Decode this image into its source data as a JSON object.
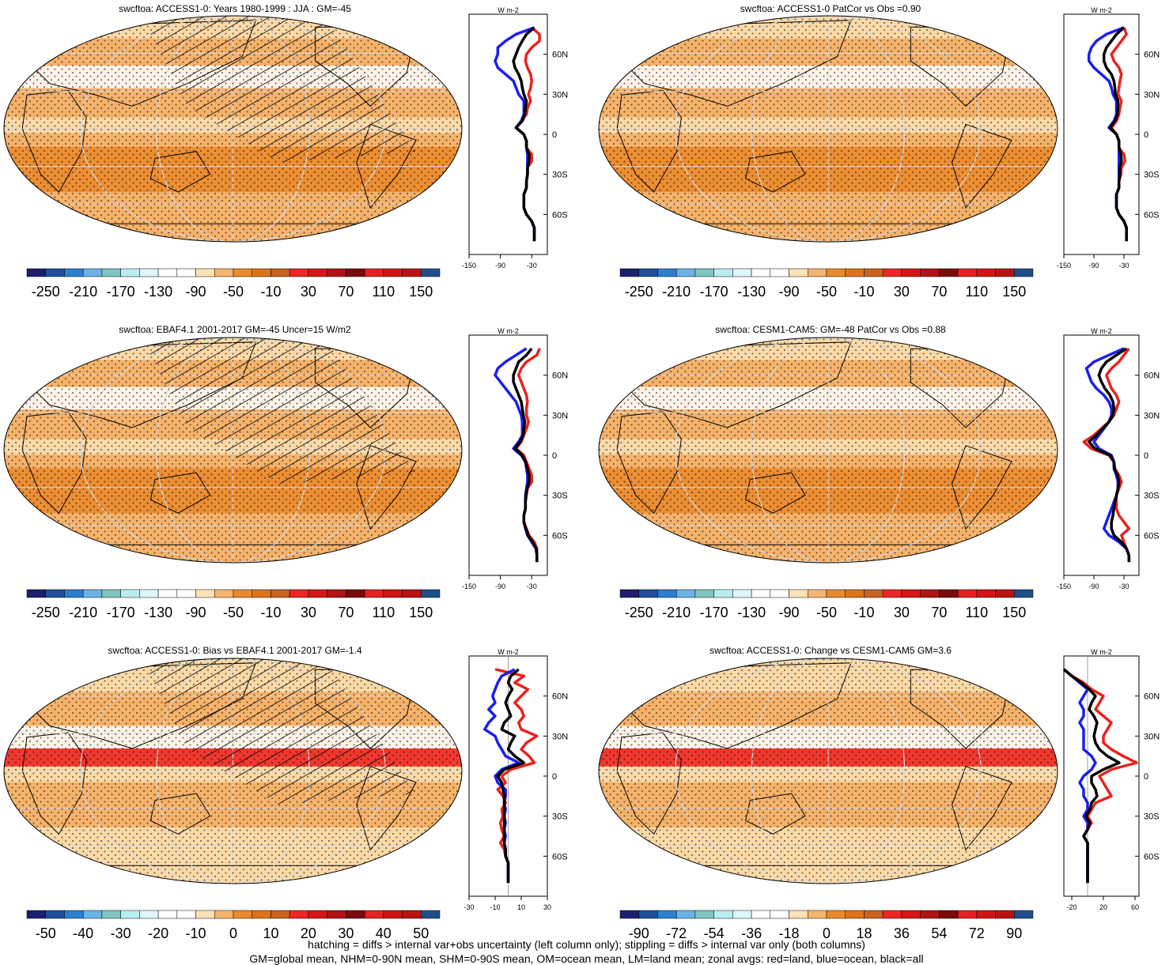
{
  "colors": {
    "ocean_base": "#f0a55c",
    "land_outline": "#000000",
    "grid_line": "#d8d8d8",
    "land_line": "#e8231f",
    "ocean_line": "#1d1df2",
    "all_line": "#000000"
  },
  "panels": [
    {
      "title": "swcftoa: ACCESS1-0: Years 1980-1999 : JJA : GM=-45",
      "hatched": true,
      "colorbar": {
        "ticks": [
          "-250",
          "-210",
          "-170",
          "-130",
          "-90",
          "-50",
          "-10",
          "30",
          "70",
          "110",
          "150"
        ],
        "colors": [
          "#1b1f6e",
          "#1f4f9c",
          "#2a7fcf",
          "#6bb3e6",
          "#7fc6c0",
          "#b8eef2",
          "#ddf7fb",
          "#ffffff",
          "#ffffff",
          "#fde2b4",
          "#f6b46d",
          "#eb8a2c",
          "#dd741a",
          "#c8621f",
          "#ee2626",
          "#d61616",
          "#b01313",
          "#7a0b0b",
          "#e52020",
          "#d01414",
          "#b81313",
          "#1e4f8a"
        ]
      },
      "zonal": {
        "label": "W m-2",
        "xticks": [
          "-150",
          "-90",
          "-30"
        ],
        "xlim": [
          -150,
          0
        ],
        "yticks": [
          "60N",
          "30N",
          "0",
          "30S",
          "60S"
        ],
        "lat": [
          80,
          75,
          70,
          65,
          60,
          55,
          50,
          45,
          40,
          35,
          30,
          25,
          20,
          15,
          10,
          5,
          0,
          -5,
          -10,
          -15,
          -20,
          -25,
          -30,
          -35,
          -40,
          -45,
          -50,
          -55,
          -60,
          -65,
          -70,
          -75,
          -80
        ],
        "land": [
          -30,
          -15,
          -15,
          -30,
          -40,
          -42,
          -38,
          -32,
          -30,
          -32,
          -36,
          -32,
          -38,
          -40,
          -50,
          -60,
          -45,
          -40,
          -40,
          -30,
          -30,
          -38,
          -38,
          -40,
          -40,
          -45,
          -45,
          -45,
          -40,
          -30,
          -25,
          -25,
          -25
        ],
        "ocean": [
          -25,
          -60,
          -80,
          -95,
          -95,
          -100,
          -95,
          -80,
          -65,
          -60,
          -55,
          -45,
          -45,
          -45,
          -50,
          -60,
          -45,
          -40,
          -40,
          -38,
          -38,
          -38,
          -38,
          -40,
          -40,
          -45,
          -45,
          -45,
          -40,
          -30,
          -25,
          -25,
          -25
        ],
        "all": [
          -25,
          -40,
          -48,
          -55,
          -60,
          -65,
          -62,
          -55,
          -50,
          -48,
          -45,
          -40,
          -42,
          -43,
          -48,
          -60,
          -45,
          -40,
          -40,
          -35,
          -35,
          -38,
          -38,
          -40,
          -40,
          -45,
          -45,
          -45,
          -40,
          -30,
          -25,
          -25,
          -25
        ]
      }
    },
    {
      "title": "swcftoa: ACCESS1-0 PatCor vs Obs =0.90",
      "hatched": false,
      "colorbar": {
        "ticks": [
          "-250",
          "-210",
          "-170",
          "-130",
          "-90",
          "-50",
          "-10",
          "30",
          "70",
          "110",
          "150"
        ],
        "colors": [
          "#1b1f6e",
          "#1f4f9c",
          "#2a7fcf",
          "#6bb3e6",
          "#7fc6c0",
          "#b8eef2",
          "#ddf7fb",
          "#ffffff",
          "#ffffff",
          "#fde2b4",
          "#f6b46d",
          "#eb8a2c",
          "#dd741a",
          "#c8621f",
          "#ee2626",
          "#d61616",
          "#b01313",
          "#7a0b0b",
          "#e52020",
          "#d01414",
          "#b81313",
          "#1e4f8a"
        ]
      },
      "zonal": {
        "label": "W m-2",
        "xticks": [
          "-150",
          "-90",
          "-30"
        ],
        "xlim": [
          -150,
          0
        ],
        "yticks": [
          "60N",
          "30N",
          "0",
          "30S",
          "60S"
        ],
        "lat": [
          80,
          75,
          70,
          65,
          60,
          55,
          50,
          45,
          40,
          35,
          30,
          25,
          20,
          15,
          10,
          5,
          0,
          -5,
          -10,
          -15,
          -20,
          -25,
          -30,
          -35,
          -40,
          -45,
          -50,
          -55,
          -60,
          -65,
          -70,
          -75,
          -80
        ],
        "land": [
          -30,
          -25,
          -35,
          -45,
          -55,
          -50,
          -40,
          -35,
          -38,
          -40,
          -42,
          -35,
          -38,
          -40,
          -45,
          -55,
          -45,
          -40,
          -40,
          -30,
          -28,
          -35,
          -36,
          -40,
          -40,
          -45,
          -45,
          -45,
          -40,
          -30,
          -25,
          -25,
          -25
        ],
        "ocean": [
          -30,
          -65,
          -85,
          -95,
          -100,
          -100,
          -90,
          -75,
          -60,
          -55,
          -52,
          -45,
          -45,
          -45,
          -50,
          -60,
          -45,
          -40,
          -40,
          -40,
          -40,
          -40,
          -40,
          -40,
          -40,
          -45,
          -45,
          -45,
          -40,
          -30,
          -25,
          -25,
          -25
        ],
        "all": [
          -30,
          -45,
          -55,
          -65,
          -70,
          -70,
          -65,
          -55,
          -50,
          -48,
          -47,
          -42,
          -42,
          -43,
          -48,
          -58,
          -45,
          -40,
          -40,
          -36,
          -35,
          -38,
          -38,
          -40,
          -40,
          -45,
          -45,
          -45,
          -40,
          -30,
          -25,
          -25,
          -25
        ]
      }
    },
    {
      "title": "swcftoa: EBAF4.1 2001-2017 GM=-45 Uncer=15 W/m2",
      "hatched": true,
      "colorbar": {
        "ticks": [
          "-250",
          "-210",
          "-170",
          "-130",
          "-90",
          "-50",
          "-10",
          "30",
          "70",
          "110",
          "150"
        ],
        "colors": [
          "#1b1f6e",
          "#1f4f9c",
          "#2a7fcf",
          "#6bb3e6",
          "#7fc6c0",
          "#b8eef2",
          "#ddf7fb",
          "#ffffff",
          "#ffffff",
          "#fde2b4",
          "#f6b46d",
          "#eb8a2c",
          "#dd741a",
          "#c8621f",
          "#ee2626",
          "#d61616",
          "#b01313",
          "#7a0b0b",
          "#e52020",
          "#d01414",
          "#b81313",
          "#1e4f8a"
        ]
      },
      "zonal": {
        "label": "W m-2",
        "xticks": [
          "-150",
          "-90",
          "-30"
        ],
        "xlim": [
          -150,
          0
        ],
        "yticks": [
          "60N",
          "30N",
          "0",
          "30S",
          "60S"
        ],
        "lat": [
          80,
          75,
          70,
          65,
          60,
          55,
          50,
          45,
          40,
          35,
          30,
          25,
          20,
          15,
          10,
          5,
          0,
          -5,
          -10,
          -15,
          -20,
          -25,
          -30,
          -35,
          -40,
          -45,
          -50,
          -55,
          -60,
          -65,
          -70,
          -75,
          -80
        ],
        "land": [
          -15,
          -20,
          -40,
          -50,
          -55,
          -50,
          -45,
          -40,
          -38,
          -40,
          -40,
          -36,
          -40,
          -45,
          -50,
          -60,
          -45,
          -40,
          -35,
          -30,
          -30,
          -38,
          -40,
          -42,
          -42,
          -45,
          -45,
          -40,
          -35,
          -25,
          -20,
          -20,
          -20
        ],
        "ocean": [
          -40,
          -60,
          -80,
          -95,
          -100,
          -90,
          -80,
          -70,
          -60,
          -55,
          -50,
          -48,
          -48,
          -48,
          -55,
          -65,
          -50,
          -42,
          -40,
          -38,
          -38,
          -40,
          -42,
          -42,
          -42,
          -45,
          -45,
          -42,
          -38,
          -30,
          -22,
          -20,
          -20
        ],
        "all": [
          -30,
          -40,
          -55,
          -60,
          -65,
          -65,
          -60,
          -55,
          -50,
          -48,
          -46,
          -43,
          -45,
          -46,
          -52,
          -62,
          -48,
          -42,
          -38,
          -35,
          -35,
          -39,
          -41,
          -42,
          -42,
          -45,
          -45,
          -41,
          -37,
          -28,
          -21,
          -20,
          -20
        ]
      }
    },
    {
      "title": "swcftoa: CESM1-CAM5: GM=-48 PatCor vs Obs =0.88",
      "hatched": false,
      "colorbar": {
        "ticks": [
          "-250",
          "-210",
          "-170",
          "-130",
          "-90",
          "-50",
          "-10",
          "30",
          "70",
          "110",
          "150"
        ],
        "colors": [
          "#1b1f6e",
          "#1f4f9c",
          "#2a7fcf",
          "#6bb3e6",
          "#7fc6c0",
          "#b8eef2",
          "#ddf7fb",
          "#ffffff",
          "#ffffff",
          "#fde2b4",
          "#f6b46d",
          "#eb8a2c",
          "#dd741a",
          "#c8621f",
          "#ee2626",
          "#d61616",
          "#b01313",
          "#7a0b0b",
          "#e52020",
          "#d01414",
          "#b81313",
          "#1e4f8a"
        ]
      },
      "zonal": {
        "label": "W m-2",
        "xticks": [
          "-150",
          "-90",
          "-30"
        ],
        "xlim": [
          -150,
          0
        ],
        "yticks": [
          "60N",
          "30N",
          "0",
          "30S",
          "60S"
        ],
        "lat": [
          80,
          75,
          70,
          65,
          60,
          55,
          50,
          45,
          40,
          35,
          30,
          25,
          20,
          15,
          10,
          5,
          0,
          -5,
          -10,
          -15,
          -20,
          -25,
          -30,
          -35,
          -40,
          -45,
          -50,
          -55,
          -60,
          -65,
          -70,
          -75,
          -80
        ],
        "land": [
          -20,
          -30,
          -40,
          -55,
          -65,
          -60,
          -55,
          -45,
          -40,
          -45,
          -50,
          -60,
          -75,
          -90,
          -110,
          -95,
          -60,
          -50,
          -48,
          -40,
          -35,
          -40,
          -45,
          -45,
          -45,
          -40,
          -30,
          -20,
          -35,
          -30,
          -25,
          -20,
          -20
        ],
        "ocean": [
          -30,
          -60,
          -90,
          -105,
          -100,
          -95,
          -85,
          -70,
          -60,
          -55,
          -55,
          -60,
          -70,
          -80,
          -90,
          -80,
          -55,
          -50,
          -50,
          -45,
          -42,
          -42,
          -45,
          -50,
          -55,
          -60,
          -65,
          -70,
          -60,
          -40,
          -25,
          -20,
          -20
        ],
        "all": [
          -25,
          -45,
          -65,
          -75,
          -80,
          -75,
          -68,
          -58,
          -52,
          -50,
          -52,
          -60,
          -72,
          -85,
          -100,
          -88,
          -58,
          -50,
          -49,
          -43,
          -40,
          -42,
          -45,
          -48,
          -50,
          -52,
          -55,
          -55,
          -50,
          -35,
          -25,
          -20,
          -20
        ]
      }
    },
    {
      "title": "swcftoa: ACCESS1-0: Bias vs EBAF4.1 2001-2017 GM=-1.4",
      "hatched": true,
      "colorbar": {
        "ticks": [
          "-50",
          "-40",
          "-30",
          "-20",
          "-10",
          "0",
          "10",
          "20",
          "30",
          "40",
          "50"
        ],
        "colors": [
          "#1b1f6e",
          "#1f4f9c",
          "#2a7fcf",
          "#6bb3e6",
          "#7fc6c0",
          "#b8eef2",
          "#ddf7fb",
          "#ffffff",
          "#ffffff",
          "#fde2b4",
          "#f6b46d",
          "#eb8a2c",
          "#dd741a",
          "#c8621f",
          "#ee2626",
          "#d61616",
          "#b01313",
          "#7a0b0b",
          "#e52020",
          "#d01414",
          "#b81313",
          "#1e4f8a"
        ]
      },
      "zonal": {
        "label": "W m-2",
        "xticks": [
          "-30",
          "-10",
          "10",
          "30"
        ],
        "xlim": [
          -30,
          30
        ],
        "yticks": [
          "60N",
          "30N",
          "0",
          "30S",
          "60S"
        ],
        "lat": [
          80,
          75,
          70,
          65,
          60,
          55,
          50,
          45,
          40,
          35,
          30,
          25,
          20,
          15,
          10,
          5,
          0,
          -5,
          -10,
          -15,
          -20,
          -25,
          -30,
          -35,
          -40,
          -45,
          -50,
          -55,
          -60,
          -65,
          -70,
          -75,
          -80
        ],
        "land": [
          -10,
          12,
          5,
          15,
          10,
          5,
          10,
          12,
          8,
          10,
          22,
          14,
          10,
          16,
          20,
          2,
          -5,
          -2,
          -8,
          -4,
          -2,
          -5,
          -4,
          -6,
          -5,
          -3,
          -6,
          -3,
          -2,
          0,
          0,
          0,
          0
        ],
        "ocean": [
          5,
          -5,
          -8,
          -10,
          -12,
          -10,
          -15,
          -10,
          -15,
          -18,
          -10,
          -8,
          -5,
          -2,
          8,
          -5,
          -10,
          -8,
          -2,
          -2,
          -3,
          -2,
          -3,
          -2,
          -3,
          -2,
          -3,
          -2,
          -2,
          0,
          0,
          0,
          0
        ],
        "all": [
          8,
          2,
          0,
          3,
          0,
          -2,
          0,
          2,
          -3,
          -5,
          5,
          2,
          0,
          5,
          12,
          -3,
          -8,
          -5,
          -4,
          -3,
          -3,
          -3,
          -3,
          -3,
          -3,
          -3,
          -3,
          -2,
          -2,
          0,
          0,
          0,
          0
        ]
      }
    },
    {
      "title": "swcftoa: ACCESS1-0: Change vs CESM1-CAM5 GM=3.6",
      "hatched": false,
      "colorbar": {
        "ticks": [
          "-90",
          "-72",
          "-54",
          "-36",
          "-18",
          "0",
          "18",
          "36",
          "54",
          "72",
          "90"
        ],
        "colors": [
          "#1b1f6e",
          "#1f4f9c",
          "#2a7fcf",
          "#6bb3e6",
          "#7fc6c0",
          "#b8eef2",
          "#ddf7fb",
          "#ffffff",
          "#ffffff",
          "#fde2b4",
          "#f6b46d",
          "#eb8a2c",
          "#dd741a",
          "#c8621f",
          "#ee2626",
          "#d61616",
          "#b01313",
          "#7a0b0b",
          "#e52020",
          "#d01414",
          "#b81313",
          "#1e4f8a"
        ]
      },
      "zonal": {
        "label": "W m-2",
        "xticks": [
          "-20",
          "20",
          "60"
        ],
        "xlim": [
          -30,
          65
        ],
        "yticks": [
          "60N",
          "30N",
          "0",
          "30S",
          "60S"
        ],
        "lat": [
          80,
          75,
          70,
          65,
          60,
          55,
          50,
          45,
          40,
          35,
          30,
          25,
          20,
          15,
          10,
          5,
          0,
          -5,
          -10,
          -15,
          -20,
          -25,
          -30,
          -35,
          -40,
          -45,
          -50,
          -55,
          -60,
          -65,
          -70,
          -75,
          -80
        ],
        "land": [
          -30,
          -20,
          -5,
          5,
          20,
          15,
          10,
          20,
          30,
          25,
          20,
          20,
          30,
          45,
          62,
          30,
          15,
          20,
          25,
          30,
          10,
          5,
          0,
          5,
          0,
          -5,
          0,
          0,
          0,
          0,
          0,
          0,
          0
        ],
        "ocean": [
          -30,
          -20,
          -10,
          0,
          -5,
          -10,
          -5,
          -5,
          -10,
          -5,
          -5,
          -5,
          -5,
          5,
          10,
          5,
          -5,
          -10,
          -5,
          -5,
          0,
          0,
          -5,
          0,
          0,
          -5,
          0,
          0,
          0,
          0,
          0,
          0,
          0
        ],
        "all": [
          -30,
          -20,
          -8,
          2,
          10,
          5,
          2,
          8,
          12,
          10,
          8,
          10,
          15,
          25,
          40,
          20,
          5,
          5,
          10,
          12,
          5,
          3,
          -2,
          3,
          0,
          -5,
          0,
          0,
          0,
          0,
          0,
          0,
          0
        ]
      }
    }
  ],
  "footer": {
    "line1": "hatching = diffs > internal var+obs uncertainty (left column only); stippling = diffs > internal var only (both columns)",
    "line2": "GM=global mean, NHM=0-90N mean, SHM=0-90S mean, OM=ocean mean, LM=land mean; zonal avgs: red=land, blue=ocean, black=all"
  }
}
